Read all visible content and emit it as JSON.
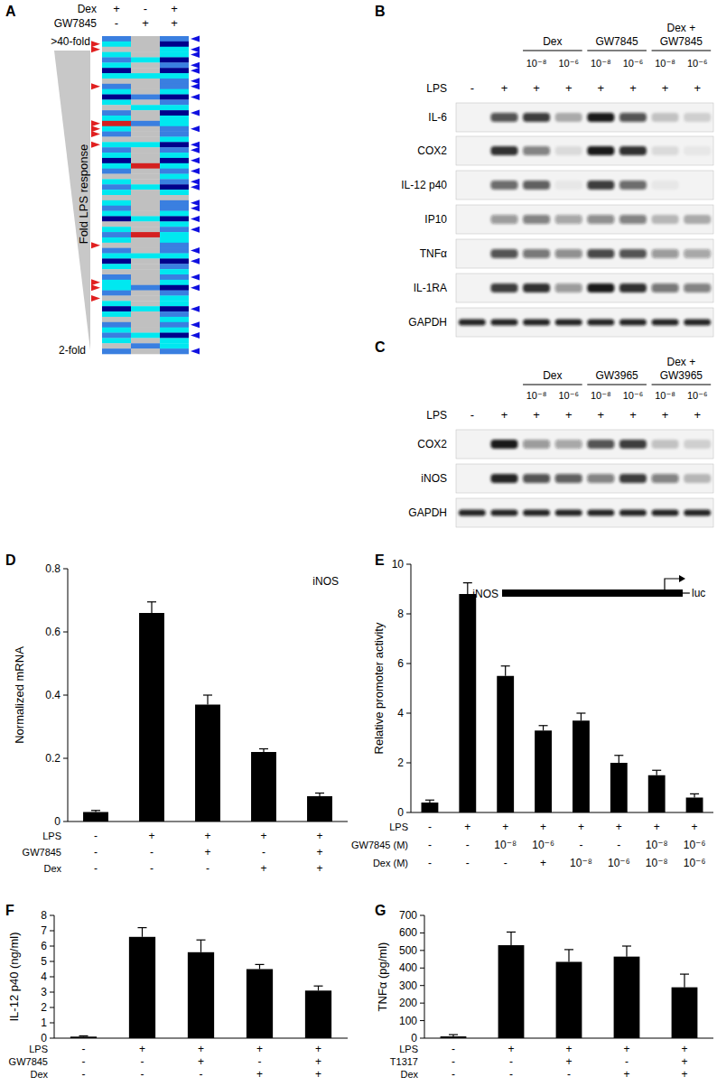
{
  "chart_data": [
    {
      "type": "heatmap",
      "panel_label": "A",
      "header_rows": [
        {
          "label": "Dex",
          "values": [
            "+",
            "-",
            "+"
          ]
        },
        {
          "label": "GW7845",
          "values": [
            "-",
            "+",
            "+"
          ]
        }
      ],
      "axis_label": "Fold LPS response",
      "top_label": ">40-fold",
      "bottom_label": "2-fold",
      "cells": [
        [
          2,
          0,
          2
        ],
        [
          1,
          0,
          3
        ],
        [
          0,
          0,
          1
        ],
        [
          1,
          0,
          1
        ],
        [
          2,
          1,
          3
        ],
        [
          1,
          0,
          2
        ],
        [
          3,
          0,
          3
        ],
        [
          1,
          1,
          1
        ],
        [
          0,
          0,
          2
        ],
        [
          2,
          0,
          2
        ],
        [
          1,
          0,
          1
        ],
        [
          3,
          2,
          3
        ],
        [
          1,
          0,
          2
        ],
        [
          0,
          1,
          1
        ],
        [
          2,
          0,
          3
        ],
        [
          1,
          0,
          1
        ],
        [
          4,
          2,
          1
        ],
        [
          1,
          0,
          2
        ],
        [
          2,
          0,
          2
        ],
        [
          0,
          0,
          1
        ],
        [
          1,
          1,
          3
        ],
        [
          2,
          0,
          2
        ],
        [
          1,
          0,
          1
        ],
        [
          3,
          0,
          3
        ],
        [
          1,
          4,
          1
        ],
        [
          2,
          0,
          2
        ],
        [
          0,
          0,
          1
        ],
        [
          1,
          0,
          2
        ],
        [
          2,
          1,
          3
        ],
        [
          1,
          0,
          1
        ],
        [
          0,
          0,
          0
        ],
        [
          1,
          0,
          2
        ],
        [
          2,
          0,
          2
        ],
        [
          1,
          0,
          1
        ],
        [
          3,
          1,
          3
        ],
        [
          0,
          0,
          1
        ],
        [
          1,
          0,
          2
        ],
        [
          2,
          4,
          1
        ],
        [
          1,
          0,
          1
        ],
        [
          0,
          0,
          2
        ],
        [
          2,
          0,
          2
        ],
        [
          1,
          1,
          1
        ],
        [
          3,
          0,
          3
        ],
        [
          1,
          0,
          2
        ],
        [
          0,
          0,
          1
        ],
        [
          2,
          0,
          2
        ],
        [
          1,
          0,
          1
        ],
        [
          1,
          2,
          3
        ],
        [
          2,
          0,
          2
        ],
        [
          0,
          0,
          1
        ],
        [
          1,
          0,
          1
        ],
        [
          3,
          1,
          3
        ],
        [
          1,
          0,
          2
        ],
        [
          0,
          0,
          1
        ],
        [
          2,
          0,
          2
        ],
        [
          1,
          0,
          1
        ],
        [
          2,
          1,
          3
        ],
        [
          1,
          0,
          1
        ],
        [
          0,
          2,
          1
        ],
        [
          2,
          0,
          2
        ]
      ],
      "marked_left": [
        1,
        2,
        9,
        16,
        17,
        18,
        20,
        39,
        46,
        47,
        49
      ],
      "marked_right": [
        0,
        2,
        3,
        5,
        6,
        8,
        9,
        11,
        14,
        17,
        20,
        21,
        23,
        25,
        27,
        28,
        31,
        32,
        34,
        36,
        40,
        42,
        45,
        47,
        51,
        54,
        56,
        59
      ]
    },
    {
      "type": "blot",
      "panel_label": "B",
      "groups": [
        {
          "label_lines": [
            "Dex"
          ],
          "lanes": [
            2,
            3
          ]
        },
        {
          "label_lines": [
            "GW7845"
          ],
          "lanes": [
            4,
            5
          ]
        },
        {
          "label_lines": [
            "Dex +",
            "GW7845"
          ],
          "lanes": [
            6,
            7
          ]
        }
      ],
      "dose_row": [
        null,
        null,
        "10⁻⁸",
        "10⁻⁶",
        "10⁻⁸",
        "10⁻⁶",
        "10⁻⁸",
        "10⁻⁶"
      ],
      "header_rows": [
        {
          "label": "LPS",
          "values": [
            "-",
            "+",
            "+",
            "+",
            "+",
            "+",
            "+",
            "+"
          ]
        }
      ],
      "rows": [
        {
          "name": "IL-6",
          "values": [
            0,
            0.7,
            0.8,
            0.3,
            0.95,
            0.7,
            0.2,
            0.15
          ]
        },
        {
          "name": "COX2",
          "values": [
            0,
            0.85,
            0.5,
            0.1,
            0.95,
            0.85,
            0.1,
            0.05
          ]
        },
        {
          "name": "IL-12 p40",
          "values": [
            0,
            0.6,
            0.65,
            0.05,
            0.8,
            0.6,
            0.05,
            0
          ]
        },
        {
          "name": "IP10",
          "values": [
            0,
            0.4,
            0.5,
            0.35,
            0.45,
            0.5,
            0.25,
            0.3
          ]
        },
        {
          "name": "TNFα",
          "values": [
            0,
            0.7,
            0.55,
            0.45,
            0.75,
            0.7,
            0.4,
            0.35
          ]
        },
        {
          "name": "IL-1RA",
          "values": [
            0,
            0.8,
            0.85,
            0.4,
            0.95,
            0.85,
            0.55,
            0.5
          ]
        },
        {
          "name": "GAPDH",
          "values": [
            0.9,
            0.9,
            0.9,
            0.9,
            0.9,
            0.9,
            0.9,
            0.9
          ]
        }
      ]
    },
    {
      "type": "blot",
      "panel_label": "C",
      "groups": [
        {
          "label_lines": [
            "Dex"
          ],
          "lanes": [
            2,
            3
          ]
        },
        {
          "label_lines": [
            "GW3965"
          ],
          "lanes": [
            4,
            5
          ]
        },
        {
          "label_lines": [
            "Dex +",
            "GW3965"
          ],
          "lanes": [
            6,
            7
          ]
        }
      ],
      "dose_row": [
        null,
        null,
        "10⁻⁸",
        "10⁻⁶",
        "10⁻⁸",
        "10⁻⁶",
        "10⁻⁸",
        "10⁻⁶"
      ],
      "header_rows": [
        {
          "label": "LPS",
          "values": [
            "-",
            "+",
            "+",
            "+",
            "+",
            "+",
            "+",
            "+"
          ]
        }
      ],
      "rows": [
        {
          "name": "COX2",
          "values": [
            0,
            0.95,
            0.4,
            0.35,
            0.7,
            0.8,
            0.2,
            0.15
          ]
        },
        {
          "name": "iNOS",
          "values": [
            0,
            0.9,
            0.7,
            0.65,
            0.5,
            0.8,
            0.5,
            0.25
          ]
        },
        {
          "name": "GAPDH",
          "values": [
            0.9,
            0.9,
            0.9,
            0.9,
            0.9,
            0.9,
            0.9,
            0.9
          ]
        }
      ]
    },
    {
      "type": "bar",
      "panel_label": "D",
      "ylabel": "Normalized mRNA",
      "annotation": "iNOS",
      "color": "#000000",
      "ylim": [
        0,
        0.8
      ],
      "yticks": [
        0,
        0.2,
        0.4,
        0.6,
        0.8
      ],
      "values": [
        0.03,
        0.66,
        0.37,
        0.22,
        0.08
      ],
      "errors": [
        0.005,
        0.035,
        0.03,
        0.01,
        0.01
      ],
      "condition_rows": [
        {
          "label": "LPS",
          "values": [
            "-",
            "+",
            "+",
            "+",
            "+"
          ]
        },
        {
          "label": "GW7845",
          "values": [
            "-",
            "-",
            "+",
            "-",
            "+"
          ]
        },
        {
          "label": "Dex",
          "values": [
            "-",
            "-",
            "-",
            "+",
            "+"
          ]
        }
      ]
    },
    {
      "type": "bar",
      "panel_label": "E",
      "ylabel": "Relative promoter activity",
      "color": "#000000",
      "inset": {
        "gene": "iNOS",
        "reporter": "luc"
      },
      "ylim": [
        0,
        10
      ],
      "yticks": [
        0,
        2,
        4,
        6,
        8,
        10
      ],
      "values": [
        0.4,
        8.8,
        5.5,
        3.3,
        3.7,
        2.0,
        1.5,
        0.6
      ],
      "errors": [
        0.1,
        0.45,
        0.4,
        0.2,
        0.3,
        0.3,
        0.2,
        0.15
      ],
      "condition_rows": [
        {
          "label": "LPS",
          "values": [
            "-",
            "+",
            "+",
            "+",
            "+",
            "+",
            "+",
            "+"
          ]
        },
        {
          "label": "GW7845 (M)",
          "values": [
            "-",
            "-",
            "10⁻⁸",
            "10⁻⁶",
            "-",
            "-",
            "10⁻⁸",
            "10⁻⁶"
          ]
        },
        {
          "label": "Dex (M)",
          "values": [
            "-",
            "-",
            "-",
            "+",
            "10⁻⁸",
            "10⁻⁶",
            "10⁻⁸",
            "10⁻⁶"
          ]
        }
      ]
    },
    {
      "type": "bar",
      "panel_label": "F",
      "ylabel": "IL-12 p40 (ng/ml)",
      "color": "#000000",
      "ylim": [
        0,
        8
      ],
      "yticks": [
        0,
        1,
        2,
        3,
        4,
        5,
        6,
        7,
        8
      ],
      "values": [
        0.1,
        6.6,
        5.6,
        4.5,
        3.1
      ],
      "errors": [
        0.05,
        0.6,
        0.8,
        0.3,
        0.3
      ],
      "condition_rows": [
        {
          "label": "LPS",
          "values": [
            "-",
            "+",
            "+",
            "+",
            "+"
          ]
        },
        {
          "label": "GW7845",
          "values": [
            "-",
            "-",
            "+",
            "-",
            "+"
          ]
        },
        {
          "label": "Dex",
          "values": [
            "-",
            "-",
            "-",
            "+",
            "+"
          ]
        }
      ]
    },
    {
      "type": "bar",
      "panel_label": "G",
      "ylabel": "TNFα (pg/ml)",
      "color": "#000000",
      "ylim": [
        0,
        700
      ],
      "yticks": [
        0,
        100,
        200,
        300,
        400,
        500,
        600,
        700
      ],
      "values": [
        10,
        530,
        435,
        465,
        290
      ],
      "errors": [
        10,
        75,
        70,
        60,
        75
      ],
      "condition_rows": [
        {
          "label": "LPS",
          "values": [
            "-",
            "+",
            "+",
            "+",
            "+"
          ]
        },
        {
          "label": "T1317",
          "values": [
            "-",
            "-",
            "+",
            "-",
            "+"
          ]
        },
        {
          "label": "Dex",
          "values": [
            "-",
            "-",
            "-",
            "+",
            "+"
          ]
        }
      ]
    }
  ]
}
